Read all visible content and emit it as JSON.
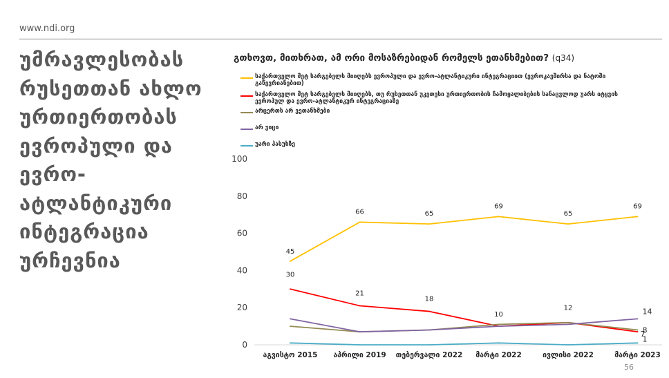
{
  "site": {
    "url": "www.ndi.org"
  },
  "slide": {
    "title": "უმრავლესობას რუსეთთან ახლო ურთიერთობას ევროპული და ევრო-ატლანტიკური ინტეგრაცია ურჩევნია",
    "question": "გთხოვთ, მითხრათ, ამ ორი მოსაზრებიდან რომელს ეთანხმებით?",
    "question_code": "(q34)",
    "page_number": "56"
  },
  "chart_data": {
    "type": "line",
    "x": [
      "აგვისტო 2015",
      "აპრილი 2019",
      "თებერვალი 2022",
      "მარტი 2022",
      "ივლისი 2022",
      "მარტი 2023"
    ],
    "ylim": [
      0,
      100
    ],
    "yticks": [
      0,
      20,
      40,
      60,
      80,
      100
    ],
    "grid": false,
    "legend_position": "top-left",
    "series": [
      {
        "name": "საქართველო მეტ სარგებელს მიიღებს ევროპული და ევრო-ატლანტიკური ინტეგრაციით (ევროკავშირსა და ნატოში გაწევრიანებით)",
        "color": "#FFC000",
        "values": [
          45,
          66,
          65,
          69,
          65,
          69
        ],
        "labels": [
          "45",
          "66",
          "65",
          "69",
          "65",
          "69"
        ]
      },
      {
        "name": "საქართველო მეტ სარგებელს მიიღებს, თუ რუსეთთან უკეთესი ურთიერთობის ჩამოყალიბების სანაცვლოდ უარს იტყვის ევროპულ და ევრო-ატლანტიკურ ინტეგრაციაზე",
        "color": "#FF0000",
        "values": [
          30,
          21,
          18,
          10,
          12,
          7
        ],
        "labels": [
          "30",
          "21",
          "18",
          "10",
          "12",
          "7"
        ]
      },
      {
        "name": "არცერთს არ ვეთანხმები",
        "color": "#948A54",
        "values": [
          10,
          7,
          8,
          11,
          12,
          8
        ],
        "labels": [
          "",
          "",
          "",
          "",
          "",
          "8"
        ]
      },
      {
        "name": "არ ვიცი",
        "color": "#8064A2",
        "values": [
          14,
          7,
          8,
          10,
          11,
          14
        ],
        "labels": [
          "",
          "",
          "",
          "",
          "",
          "14"
        ]
      },
      {
        "name": "უარი პასუხზე",
        "color": "#4BACC6",
        "values": [
          1,
          0,
          0,
          1,
          0,
          1
        ],
        "labels": [
          "",
          "",
          "",
          "",
          "",
          "1"
        ]
      }
    ]
  }
}
